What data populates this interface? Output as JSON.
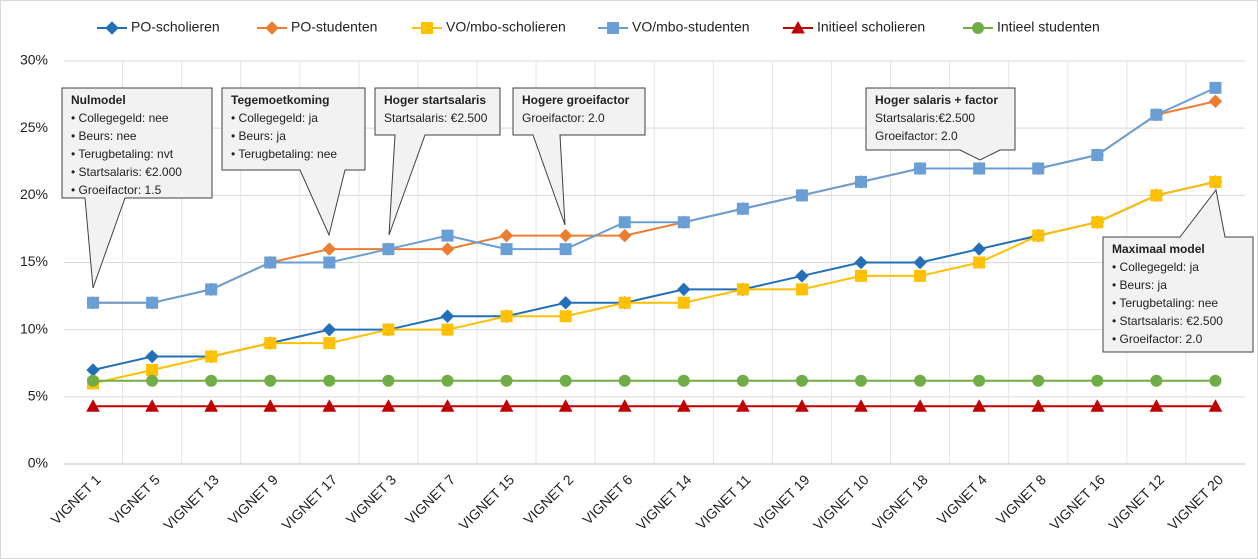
{
  "chart_data": {
    "type": "line",
    "categories": [
      "VIGNET 1",
      "VIGNET 5",
      "VIGNET 13",
      "VIGNET 9",
      "VIGNET 17",
      "VIGNET 3",
      "VIGNET 7",
      "VIGNET 15",
      "VIGNET 2",
      "VIGNET 6",
      "VIGNET 14",
      "VIGNET 11",
      "VIGNET 19",
      "VIGNET 10",
      "VIGNET 18",
      "VIGNET 4",
      "VIGNET 8",
      "VIGNET 16",
      "VIGNET 12",
      "VIGNET 20"
    ],
    "series": [
      {
        "name": "PO-scholieren",
        "color": "#2470b8",
        "marker": "diamond",
        "values": [
          7,
          8,
          8,
          9,
          10,
          10,
          11,
          11,
          12,
          12,
          13,
          13,
          14,
          15,
          15,
          16,
          17,
          18,
          20,
          21
        ]
      },
      {
        "name": "PO-studenten",
        "color": "#ed7d31",
        "marker": "diamond",
        "values": [
          12,
          12,
          13,
          15,
          16,
          16,
          16,
          17,
          17,
          17,
          18,
          19,
          20,
          21,
          22,
          22,
          22,
          23,
          26,
          27
        ]
      },
      {
        "name": "VO/mbo-scholieren",
        "color": "#ffc000",
        "marker": "square",
        "values": [
          6,
          7,
          8,
          9,
          9,
          10,
          10,
          11,
          11,
          12,
          12,
          13,
          13,
          14,
          14,
          15,
          17,
          18,
          20,
          21
        ]
      },
      {
        "name": "VO/mbo-studenten",
        "color": "#6a9fd6",
        "marker": "square",
        "values": [
          12,
          12,
          13,
          15,
          15,
          16,
          17,
          16,
          16,
          18,
          18,
          19,
          20,
          21,
          22,
          22,
          22,
          23,
          26,
          28
        ]
      },
      {
        "name": "Initieel scholieren",
        "color": "#c00000",
        "marker": "triangle",
        "values": [
          4.3,
          4.3,
          4.3,
          4.3,
          4.3,
          4.3,
          4.3,
          4.3,
          4.3,
          4.3,
          4.3,
          4.3,
          4.3,
          4.3,
          4.3,
          4.3,
          4.3,
          4.3,
          4.3,
          4.3
        ]
      },
      {
        "name": "Intieel studenten",
        "color": "#70ad47",
        "marker": "circle",
        "values": [
          6.2,
          6.2,
          6.2,
          6.2,
          6.2,
          6.2,
          6.2,
          6.2,
          6.2,
          6.2,
          6.2,
          6.2,
          6.2,
          6.2,
          6.2,
          6.2,
          6.2,
          6.2,
          6.2,
          6.2
        ]
      }
    ],
    "ylim": [
      0,
      30
    ],
    "yticks": [
      {
        "value": 0,
        "label": "0%"
      },
      {
        "value": 5,
        "label": "5%"
      },
      {
        "value": 10,
        "label": "10%"
      },
      {
        "value": 15,
        "label": "15%"
      },
      {
        "value": 20,
        "label": "20%"
      },
      {
        "value": 25,
        "label": "25%"
      },
      {
        "value": 30,
        "label": "30%"
      }
    ],
    "grid": true,
    "legend": "top",
    "annotations": [
      {
        "title": "Nulmodel",
        "lines": [
          "• Collegegeld: nee",
          "• Beurs: nee",
          "• Terugbetaling: nvt",
          "• Startsalaris: €2.000",
          "• Groeifactor: 1.5"
        ]
      },
      {
        "title": "Tegemoetkoming",
        "lines": [
          "• Collegegeld: ja",
          "• Beurs: ja",
          "• Terugbetaling: nee"
        ]
      },
      {
        "title": "Hoger startsalaris",
        "lines": [
          "Startsalaris: €2.500"
        ]
      },
      {
        "title": "Hogere groeifactor",
        "lines": [
          "Groeifactor: 2.0"
        ]
      },
      {
        "title": "Hoger salaris + factor",
        "lines": [
          "Startsalaris:€2.500",
          "Groeifactor: 2.0"
        ]
      },
      {
        "title": "Maximaal model",
        "lines": [
          "• Collegegeld: ja",
          "• Beurs: ja",
          "• Terugbetaling: nee",
          "• Startsalaris: €2.500",
          "• Groeifactor: 2.0"
        ]
      }
    ]
  }
}
